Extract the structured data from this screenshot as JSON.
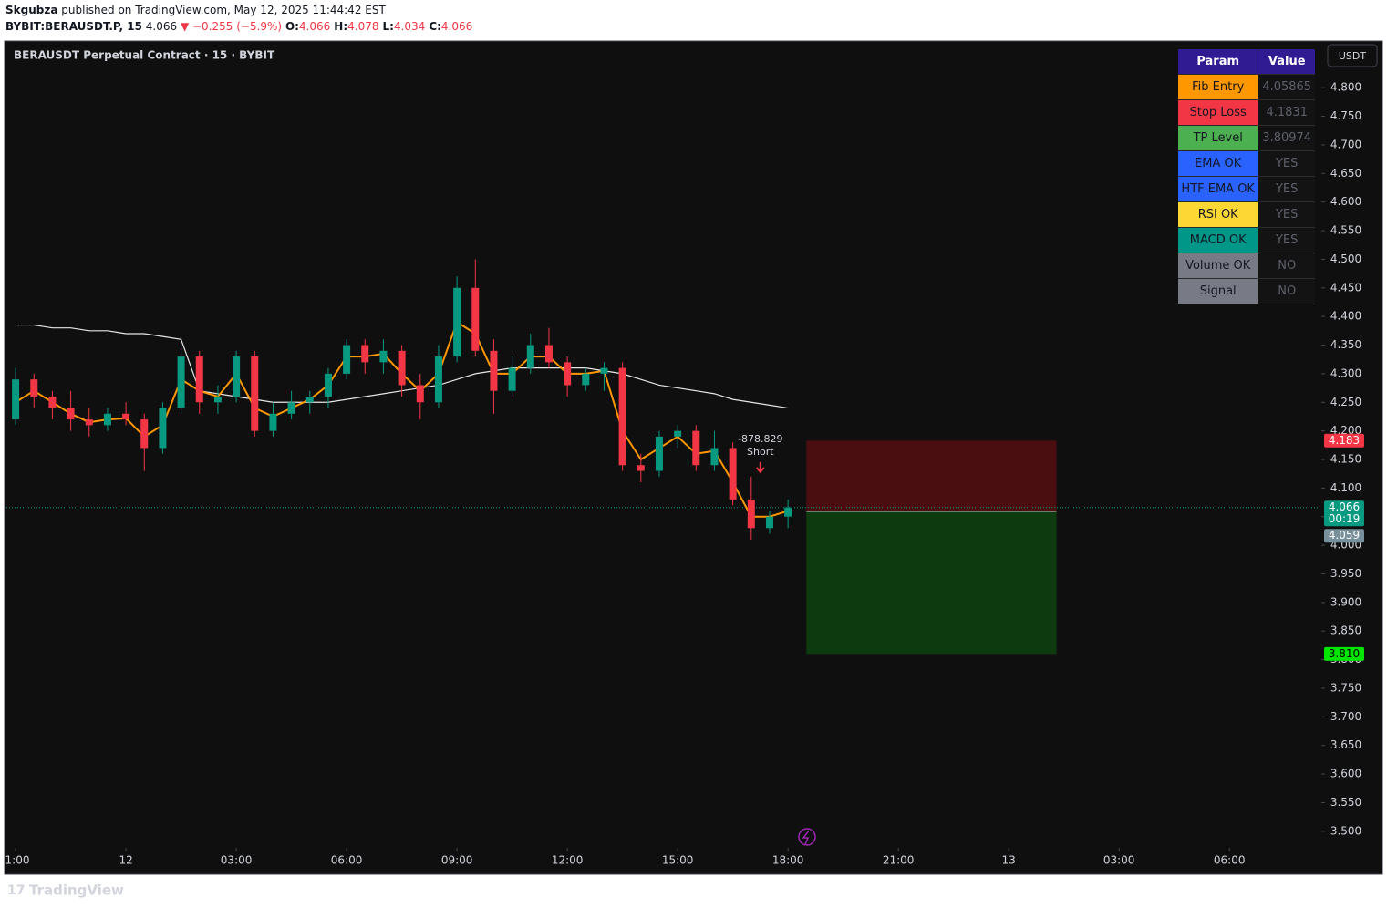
{
  "header": {
    "author": "Skgubza",
    "published": "published on TradingView.com, May 12, 2025 11:44:42 EST",
    "symbol": "BYBIT:BERAUSDT.P, 15",
    "last": 4.066,
    "change": "▼ −0.255 (−5.9%)",
    "ohlc": [
      {
        "label": "O:",
        "value": 4.066
      },
      {
        "label": "H:",
        "value": 4.078
      },
      {
        "label": "L:",
        "value": 4.034
      },
      {
        "label": "C:",
        "value": 4.066
      }
    ]
  },
  "footer": "TradingView",
  "currency": "USDT",
  "table": {
    "header": [
      "Param",
      "Value"
    ],
    "header_color": "#311b92",
    "rows": [
      [
        "Fib Entry",
        4.05865
      ],
      [
        "Stop Loss",
        4.1831
      ],
      [
        "TP Level",
        3.80974
      ],
      [
        "EMA OK",
        "YES"
      ],
      [
        "HTF EMA OK",
        "YES"
      ],
      [
        "RSI OK",
        "YES"
      ],
      [
        "MACD OK",
        "YES"
      ],
      [
        "Volume OK",
        "NO"
      ],
      [
        "Signal",
        "NO"
      ]
    ],
    "row_colors": [
      "#ff9800",
      "#f23645",
      "#4caf50",
      "#2962ff",
      "#2962ff",
      "#fdd835",
      "#009688",
      "#787b86",
      "#787b86"
    ]
  },
  "chart_data": {
    "type": "candlestick",
    "title": "BERAUSDT Perpetual Contract · 15 · BYBIT",
    "x": [
      -3,
      -2.5,
      -2,
      -1.5,
      -1,
      -0.5,
      0,
      0.5,
      1,
      1.5,
      2,
      2.5,
      3,
      3.5,
      4,
      4.5,
      5,
      5.5,
      6,
      6.5,
      7,
      7.5,
      8,
      8.5,
      9,
      9.5,
      10,
      10.5,
      11,
      11.5,
      12,
      12.5,
      13,
      13.5,
      14,
      14.5,
      15,
      15.5,
      16,
      16.5,
      17,
      17.5,
      18
    ],
    "open": [
      4.22,
      4.29,
      4.26,
      4.24,
      4.22,
      4.21,
      4.23,
      4.22,
      4.17,
      4.24,
      4.33,
      4.25,
      4.26,
      4.33,
      4.2,
      4.23,
      4.25,
      4.26,
      4.3,
      4.35,
      4.32,
      4.34,
      4.28,
      4.25,
      4.33,
      4.45,
      4.34,
      4.27,
      4.31,
      4.35,
      4.32,
      4.28,
      4.3,
      4.31,
      4.14,
      4.13,
      4.19,
      4.2,
      4.14,
      4.17,
      4.08,
      4.03,
      4.05
    ],
    "high": [
      4.31,
      4.3,
      4.27,
      4.27,
      4.24,
      4.24,
      4.25,
      4.23,
      4.25,
      4.35,
      4.34,
      4.28,
      4.34,
      4.34,
      4.25,
      4.27,
      4.27,
      4.31,
      4.36,
      4.36,
      4.36,
      4.35,
      4.3,
      4.35,
      4.47,
      4.5,
      4.36,
      4.33,
      4.37,
      4.38,
      4.33,
      4.31,
      4.32,
      4.32,
      4.16,
      4.2,
      4.21,
      4.21,
      4.2,
      4.18,
      4.12,
      4.06,
      4.08
    ],
    "low": [
      4.21,
      4.24,
      4.22,
      4.2,
      4.19,
      4.2,
      4.21,
      4.13,
      4.16,
      4.23,
      4.23,
      4.23,
      4.25,
      4.19,
      4.19,
      4.22,
      4.23,
      4.24,
      4.29,
      4.3,
      4.3,
      4.26,
      4.22,
      4.24,
      4.32,
      4.33,
      4.23,
      4.26,
      4.3,
      4.31,
      4.26,
      4.27,
      4.27,
      4.13,
      4.11,
      4.12,
      4.17,
      4.13,
      4.13,
      4.07,
      4.01,
      4.02,
      4.03
    ],
    "close": [
      4.29,
      4.26,
      4.24,
      4.22,
      4.21,
      4.23,
      4.22,
      4.17,
      4.24,
      4.33,
      4.25,
      4.26,
      4.33,
      4.2,
      4.23,
      4.25,
      4.26,
      4.3,
      4.35,
      4.32,
      4.34,
      4.28,
      4.25,
      4.33,
      4.45,
      4.34,
      4.27,
      4.31,
      4.35,
      4.32,
      4.28,
      4.3,
      4.31,
      4.14,
      4.13,
      4.19,
      4.2,
      4.14,
      4.17,
      4.08,
      4.03,
      4.05,
      4.066
    ],
    "up_color": "#089981",
    "down_color": "#f23645",
    "overlays": [
      {
        "color": "#e6e6e6",
        "values": [
          4.385,
          4.385,
          4.38,
          4.38,
          4.375,
          4.375,
          4.37,
          4.37,
          4.365,
          4.36,
          4.27,
          4.265,
          4.26,
          4.255,
          4.25,
          4.25,
          4.25,
          4.25,
          4.255,
          4.26,
          4.265,
          4.27,
          4.275,
          4.28,
          4.29,
          4.3,
          4.305,
          4.31,
          4.31,
          4.31,
          4.31,
          4.31,
          4.305,
          4.3,
          4.29,
          4.28,
          4.275,
          4.27,
          4.265,
          4.255,
          4.25,
          4.245,
          4.24
        ]
      },
      {
        "color": "#ff9800",
        "values": [
          4.25,
          4.27,
          4.25,
          4.23,
          4.215,
          4.22,
          4.222,
          4.19,
          4.21,
          4.29,
          4.27,
          4.26,
          4.3,
          4.24,
          4.225,
          4.24,
          4.255,
          4.28,
          4.33,
          4.33,
          4.335,
          4.3,
          4.27,
          4.3,
          4.39,
          4.37,
          4.3,
          4.3,
          4.33,
          4.33,
          4.3,
          4.3,
          4.305,
          4.2,
          4.15,
          4.17,
          4.19,
          4.16,
          4.165,
          4.11,
          4.05,
          4.05,
          4.06
        ]
      }
    ],
    "position": {
      "x": [
        18.5,
        25.3
      ],
      "stop": 4.183,
      "entry": 4.059,
      "target": 3.81
    },
    "annotation": {
      "x": 17,
      "y": 4.19,
      "lines": [
        "-878.829",
        "Short"
      ]
    },
    "price_labels": [
      {
        "value": 4.183,
        "label": "4.183",
        "color": "#f23645"
      },
      {
        "value": 4.066,
        "label": "4.066",
        "color": "#089981",
        "sub": "00:19"
      },
      {
        "value": 4.059,
        "label": "4.059",
        "color": "#78909c"
      },
      {
        "value": 3.81,
        "label": "3.810",
        "color": "#00e600"
      }
    ],
    "xlim": [
      -3.25,
      32.45
    ],
    "ylim": [
      3.471,
      4.88
    ],
    "xticks": [
      {
        "value": -3,
        "label": "1:00"
      },
      {
        "value": 0,
        "label": "12"
      },
      {
        "value": 3,
        "label": "03:00"
      },
      {
        "value": 6,
        "label": "06:00"
      },
      {
        "value": 9,
        "label": "09:00"
      },
      {
        "value": 12,
        "label": "12:00"
      },
      {
        "value": 15,
        "label": "15:00"
      },
      {
        "value": 18,
        "label": "18:00"
      },
      {
        "value": 21,
        "label": "21:00"
      },
      {
        "value": 24,
        "label": "13"
      },
      {
        "value": 27,
        "label": "03:00"
      },
      {
        "value": 30,
        "label": "06:00"
      }
    ],
    "yticks": [
      {
        "value": 3.5,
        "label": "3.500"
      },
      {
        "value": 3.55,
        "label": "3.550"
      },
      {
        "value": 3.6,
        "label": "3.600"
      },
      {
        "value": 3.65,
        "label": "3.650"
      },
      {
        "value": 3.7,
        "label": "3.700"
      },
      {
        "value": 3.75,
        "label": "3.750"
      },
      {
        "value": 3.8,
        "label": "3.800"
      },
      {
        "value": 3.85,
        "label": "3.850"
      },
      {
        "value": 3.9,
        "label": "3.900"
      },
      {
        "value": 3.95,
        "label": "3.950"
      },
      {
        "value": 4.0,
        "label": "4.000"
      },
      {
        "value": 4.05,
        "label": "4.050"
      },
      {
        "value": 4.1,
        "label": "4.100"
      },
      {
        "value": 4.15,
        "label": "4.150"
      },
      {
        "value": 4.2,
        "label": "4.200"
      },
      {
        "value": 4.25,
        "label": "4.250"
      },
      {
        "value": 4.3,
        "label": "4.300"
      },
      {
        "value": 4.35,
        "label": "4.350"
      },
      {
        "value": 4.4,
        "label": "4.400"
      },
      {
        "value": 4.45,
        "label": "4.450"
      },
      {
        "value": 4.5,
        "label": "4.500"
      },
      {
        "value": 4.55,
        "label": "4.550"
      },
      {
        "value": 4.6,
        "label": "4.600"
      },
      {
        "value": 4.65,
        "label": "4.650"
      },
      {
        "value": 4.7,
        "label": "4.700"
      },
      {
        "value": 4.75,
        "label": "4.750"
      },
      {
        "value": 4.8,
        "label": "4.800"
      }
    ],
    "grid": false
  }
}
